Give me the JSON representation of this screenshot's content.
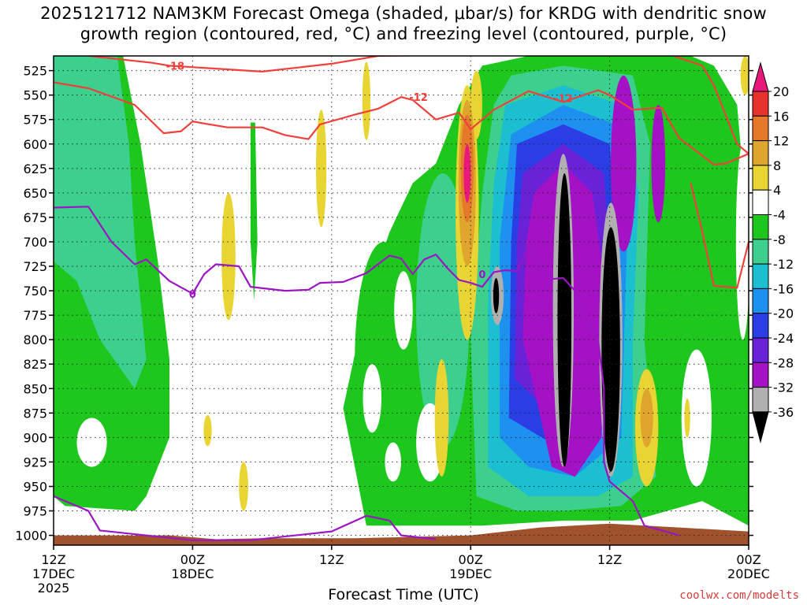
{
  "title": {
    "line1": "2025121712 NAM3KM Forecast Omega (shaded, μbar/s) for KRDG with dendritic snow",
    "line2": "growth region (contoured, red, °C) and freezing level (contoured, purple, °C)"
  },
  "credit": "coolwx.com/modelts",
  "chart_data": {
    "type": "heatmap",
    "title": "2025121712 NAM3KM Forecast Omega (shaded, μbar/s) for KRDG with dendritic snow growth region (contoured, red, °C) and freezing level (contoured, purple, °C)",
    "xlabel": "Forecast Time (UTC)",
    "ylabel": "",
    "x_unit": "forecast hour",
    "xlim": [
      0,
      60
    ],
    "ylim": [
      1010,
      510
    ],
    "y_ticks": [
      525,
      550,
      575,
      600,
      625,
      650,
      675,
      700,
      725,
      750,
      775,
      800,
      825,
      850,
      875,
      900,
      925,
      950,
      975,
      1000
    ],
    "x_ticks": [
      {
        "hour": 0,
        "lines": [
          "12Z",
          "17DEC",
          "2025"
        ]
      },
      {
        "hour": 12,
        "lines": [
          "00Z",
          "18DEC"
        ]
      },
      {
        "hour": 24,
        "lines": [
          "12Z"
        ]
      },
      {
        "hour": 36,
        "lines": [
          "00Z",
          "19DEC"
        ]
      },
      {
        "hour": 48,
        "lines": [
          "12Z"
        ]
      },
      {
        "hour": 60,
        "lines": [
          "00Z",
          "20DEC"
        ]
      }
    ],
    "colorbar": {
      "labels": [
        "20",
        "16",
        "12",
        "8",
        "4",
        "-4",
        "-8",
        "-12",
        "-16",
        "-20",
        "-24",
        "-28",
        "-32",
        "-36"
      ],
      "levels": [
        {
          "range": [
            20,
            24
          ],
          "color": "#e8197a"
        },
        {
          "range": [
            16,
            20
          ],
          "color": "#e8322d"
        },
        {
          "range": [
            12,
            16
          ],
          "color": "#e6782a"
        },
        {
          "range": [
            8,
            12
          ],
          "color": "#e0a52c"
        },
        {
          "range": [
            4,
            8
          ],
          "color": "#e8d534"
        },
        {
          "range": [
            -4,
            4
          ],
          "color": "#ffffff"
        },
        {
          "range": [
            -8,
            -4
          ],
          "color": "#1dc71d"
        },
        {
          "range": [
            -12,
            -8
          ],
          "color": "#3dcf8d"
        },
        {
          "range": [
            -16,
            -12
          ],
          "color": "#1bbfd0"
        },
        {
          "range": [
            -20,
            -16
          ],
          "color": "#1e90f0"
        },
        {
          "range": [
            -24,
            -20
          ],
          "color": "#2a3ee6"
        },
        {
          "range": [
            -28,
            -24
          ],
          "color": "#6a22d8"
        },
        {
          "range": [
            -32,
            -28
          ],
          "color": "#a511c4"
        },
        {
          "range": [
            -36,
            -32
          ],
          "color": "#b0b0b0"
        },
        {
          "range": [
            -40,
            -36
          ],
          "color": "#000000"
        }
      ]
    },
    "contours": [
      {
        "name": "dendritic-snow-growth -18C",
        "label": "-18",
        "color": "#f0403c",
        "points": [
          [
            0,
            506
          ],
          [
            8.5,
            517
          ],
          [
            10,
            520
          ],
          [
            18,
            526
          ],
          [
            24,
            518
          ],
          [
            28,
            510
          ],
          [
            40,
            508
          ],
          [
            54,
            508
          ]
        ]
      },
      {
        "name": "dendritic-snow-growth -12C",
        "label": "-12",
        "color": "#f0403c",
        "points": [
          [
            0,
            537
          ],
          [
            3,
            543
          ],
          [
            7,
            560
          ],
          [
            9.5,
            589
          ],
          [
            11,
            587
          ],
          [
            12,
            577
          ],
          [
            15,
            583
          ],
          [
            18,
            583
          ],
          [
            20,
            591
          ],
          [
            22,
            595
          ],
          [
            23,
            580
          ],
          [
            26,
            570
          ],
          [
            28,
            564
          ],
          [
            30,
            552
          ],
          [
            31,
            555
          ],
          [
            33,
            575
          ],
          [
            35,
            568
          ],
          [
            36,
            585
          ],
          [
            38,
            565
          ],
          [
            41,
            546
          ],
          [
            44,
            557
          ],
          [
            47,
            545
          ],
          [
            48,
            550
          ],
          [
            50,
            565
          ],
          [
            52.5,
            563
          ],
          [
            54,
            594
          ],
          [
            57,
            621
          ],
          [
            58,
            620
          ],
          [
            60,
            610
          ]
        ]
      },
      {
        "name": "dendritic-snow-growth -12C (secondary)",
        "label": "",
        "color": "#f0403c",
        "points": [
          [
            53,
            508
          ],
          [
            56,
            520
          ],
          [
            57,
            540
          ],
          [
            58,
            570
          ],
          [
            59,
            600
          ],
          [
            60,
            610
          ]
        ]
      },
      {
        "name": "dendritic-snow-growth -12C (lower loop)",
        "label": "",
        "color": "#f0403c",
        "points": [
          [
            55,
            640
          ],
          [
            56,
            690
          ],
          [
            57,
            745
          ],
          [
            59,
            747
          ],
          [
            60,
            700
          ]
        ]
      },
      {
        "name": "freezing level 0C",
        "label": "0",
        "color": "#9b16c2",
        "points": [
          [
            0,
            665
          ],
          [
            3,
            664
          ],
          [
            5,
            700
          ],
          [
            7,
            723
          ],
          [
            8,
            718
          ],
          [
            10,
            740
          ],
          [
            12,
            753
          ],
          [
            13,
            733
          ],
          [
            14,
            723
          ],
          [
            16,
            725
          ],
          [
            17,
            746
          ],
          [
            20,
            750
          ],
          [
            22,
            749
          ],
          [
            23,
            742
          ],
          [
            25,
            741
          ],
          [
            27,
            732
          ],
          [
            29,
            714
          ],
          [
            30,
            717
          ],
          [
            31,
            733
          ],
          [
            32,
            718
          ],
          [
            33,
            713
          ],
          [
            34,
            727
          ],
          [
            35,
            739
          ],
          [
            36,
            742
          ],
          [
            37,
            746
          ],
          [
            38,
            731
          ],
          [
            39,
            729
          ],
          [
            40,
            730
          ],
          [
            41,
            705
          ],
          [
            42,
            725
          ],
          [
            43,
            738
          ],
          [
            44,
            737
          ],
          [
            45,
            750
          ],
          [
            46,
            780
          ],
          [
            47,
            800
          ],
          [
            47.5,
            850
          ],
          [
            47.5,
            925
          ],
          [
            48,
            945
          ],
          [
            50,
            965
          ],
          [
            51,
            990
          ],
          [
            54,
            1000
          ]
        ]
      },
      {
        "name": "freezing level 0C (surface)",
        "label": "",
        "color": "#9b16c2",
        "points": [
          [
            0,
            960
          ],
          [
            3,
            975
          ],
          [
            4,
            995
          ],
          [
            12,
            1005
          ],
          [
            17,
            1005
          ],
          [
            24,
            996
          ],
          [
            27,
            980
          ],
          [
            29,
            985
          ],
          [
            30,
            1000
          ],
          [
            33,
            1004
          ]
        ]
      }
    ]
  }
}
